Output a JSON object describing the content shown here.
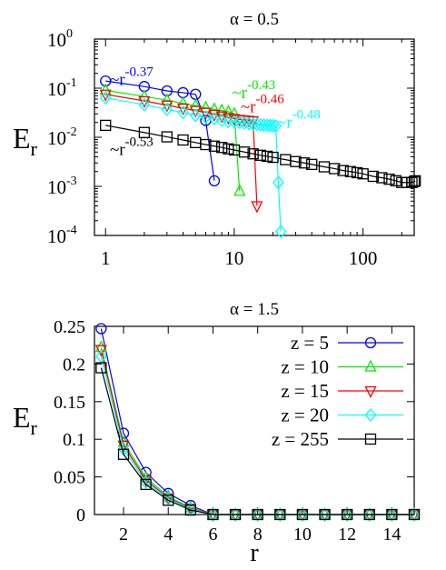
{
  "chart_data": [
    {
      "type": "line",
      "title": "α = 0.5",
      "xlabel": "",
      "ylabel": {
        "main": "E",
        "sub": "r"
      },
      "xscale": "log",
      "yscale": "log",
      "xlim": [
        0.82,
        250
      ],
      "ylim": [
        0.0001,
        1
      ],
      "xticks": [
        {
          "v": 1,
          "label": "1"
        },
        {
          "v": 10,
          "label": "10"
        },
        {
          "v": 100,
          "label": "100"
        }
      ],
      "yticks": [
        {
          "v": 1,
          "base": "10",
          "exp": "0"
        },
        {
          "v": 0.1,
          "base": "10",
          "exp": "-1"
        },
        {
          "v": 0.01,
          "base": "10",
          "exp": "-2"
        },
        {
          "v": 0.001,
          "base": "10",
          "exp": "-3"
        },
        {
          "v": 0.0001,
          "base": "10",
          "exp": "-4"
        }
      ],
      "grid": false,
      "series": [
        {
          "color": "#0000ff",
          "marker": "circle",
          "x": [
            1,
            2,
            3,
            4,
            5,
            6,
            7
          ],
          "y": [
            0.14,
            0.108,
            0.088,
            0.081,
            0.075,
            0.022,
            0.0013
          ]
        },
        {
          "color": "#00ee00",
          "marker": "triangle-up",
          "x": [
            1,
            2,
            3,
            4,
            5,
            6,
            7,
            8,
            9,
            10,
            11
          ],
          "y": [
            0.09,
            0.068,
            0.057,
            0.049,
            0.044,
            0.04,
            0.037,
            0.035,
            0.033,
            0.03,
            0.0008
          ]
        },
        {
          "color": "#ff0000",
          "marker": "triangle-down",
          "x": [
            1,
            2,
            3,
            4,
            5,
            6,
            7,
            8,
            9,
            10,
            11,
            12,
            13,
            14,
            15
          ],
          "y": [
            0.075,
            0.055,
            0.045,
            0.039,
            0.035,
            0.032,
            0.029,
            0.027,
            0.025,
            0.024,
            0.023,
            0.0225,
            0.022,
            0.0215,
            0.0004
          ]
        },
        {
          "color": "#00ffff",
          "marker": "diamond",
          "x": [
            1,
            2,
            3,
            4,
            5,
            6,
            7,
            8,
            9,
            10,
            11,
            12,
            13,
            14,
            15,
            16,
            17,
            18,
            19,
            20,
            21,
            22,
            23
          ],
          "y": [
            0.064,
            0.046,
            0.037,
            0.032,
            0.028,
            0.026,
            0.024,
            0.022,
            0.021,
            0.0205,
            0.02,
            0.0195,
            0.019,
            0.0186,
            0.0183,
            0.018,
            0.0177,
            0.0175,
            0.0173,
            0.0171,
            0.017,
            0.0012,
            0.00012
          ]
        },
        {
          "color": "#000000",
          "marker": "square",
          "x": [
            1,
            2,
            3,
            4,
            5,
            6,
            7,
            8,
            9,
            10,
            12,
            14,
            16,
            18,
            20,
            25,
            30,
            35,
            40,
            50,
            60,
            70,
            80,
            90,
            100,
            120,
            140,
            160,
            180,
            200,
            220,
            240,
            250,
            255
          ],
          "y": [
            0.0175,
            0.0125,
            0.0102,
            0.0088,
            0.0078,
            0.0071,
            0.0066,
            0.0062,
            0.0058,
            0.0055,
            0.005,
            0.0046,
            0.0043,
            0.0041,
            0.0039,
            0.0035,
            0.0032,
            0.003,
            0.0028,
            0.0025,
            0.0023,
            0.0021,
            0.002,
            0.0019,
            0.0018,
            0.0016,
            0.0015,
            0.0014,
            0.0013,
            0.0012,
            0.0012,
            0.0012,
            0.00125,
            0.0013
          ]
        }
      ],
      "annotations": [
        {
          "text": "~r",
          "exp": "-0.37",
          "color": "#0000ff",
          "at": [
            1.08,
            0.115
          ]
        },
        {
          "text": "~r",
          "exp": "-0.43",
          "color": "#00ee00",
          "at": [
            9.6,
            0.062
          ]
        },
        {
          "text": "~r",
          "exp": "-0.46",
          "color": "#ff0000",
          "at": [
            11.2,
            0.032
          ]
        },
        {
          "text": "~r",
          "exp": "-0.48",
          "color": "#00ffff",
          "at": [
            21.5,
            0.0158
          ]
        },
        {
          "text": "~r",
          "exp": "-0.53",
          "color": "#000000",
          "at": [
            1.08,
            0.0044
          ]
        }
      ]
    },
    {
      "type": "line",
      "title": "α = 1.5",
      "xlabel": "r",
      "ylabel": {
        "main": "E",
        "sub": "r"
      },
      "xlim": [
        0.7,
        15
      ],
      "ylim": [
        0,
        0.25
      ],
      "xticks": [
        {
          "v": 2,
          "label": "2"
        },
        {
          "v": 4,
          "label": "4"
        },
        {
          "v": 6,
          "label": "6"
        },
        {
          "v": 8,
          "label": "8"
        },
        {
          "v": 10,
          "label": "10"
        },
        {
          "v": 12,
          "label": "12"
        },
        {
          "v": 14,
          "label": "14"
        }
      ],
      "yticks": [
        {
          "v": 0,
          "label": "0"
        },
        {
          "v": 0.05,
          "label": "0.05"
        },
        {
          "v": 0.1,
          "label": "0.1"
        },
        {
          "v": 0.15,
          "label": "0.15"
        },
        {
          "v": 0.2,
          "label": "0.2"
        },
        {
          "v": 0.25,
          "label": "0.25"
        }
      ],
      "grid": false,
      "legend_position": "top-right",
      "x": [
        1,
        2,
        3,
        4,
        5,
        6,
        7,
        8,
        9,
        10,
        11,
        12,
        13,
        14,
        15
      ],
      "series": [
        {
          "name": "z = 5",
          "color": "#0000ff",
          "marker": "circle",
          "values": [
            0.247,
            0.108,
            0.056,
            0.028,
            0.012,
            0,
            0,
            0,
            0,
            0,
            0,
            0,
            0,
            0,
            0
          ]
        },
        {
          "name": "z = 10",
          "color": "#00ee00",
          "marker": "triangle-up",
          "values": [
            0.222,
            0.096,
            0.049,
            0.024,
            0.009,
            0,
            0,
            0,
            0,
            0,
            0,
            0,
            0,
            0,
            0
          ]
        },
        {
          "name": "z = 15",
          "color": "#ff0000",
          "marker": "triangle-down",
          "values": [
            0.219,
            0.092,
            0.046,
            0.022,
            0.008,
            0,
            0,
            0,
            0,
            0,
            0,
            0,
            0,
            0,
            0
          ]
        },
        {
          "name": "z = 20",
          "color": "#00ffff",
          "marker": "diamond",
          "values": [
            0.21,
            0.087,
            0.043,
            0.021,
            0.007,
            0,
            0,
            0,
            0,
            0,
            0,
            0,
            0,
            0,
            0
          ]
        },
        {
          "name": "z = 255",
          "color": "#000000",
          "marker": "square",
          "values": [
            0.195,
            0.08,
            0.04,
            0.019,
            0.006,
            0,
            0,
            0,
            0,
            0,
            0,
            0,
            0,
            0,
            0
          ]
        }
      ]
    }
  ]
}
